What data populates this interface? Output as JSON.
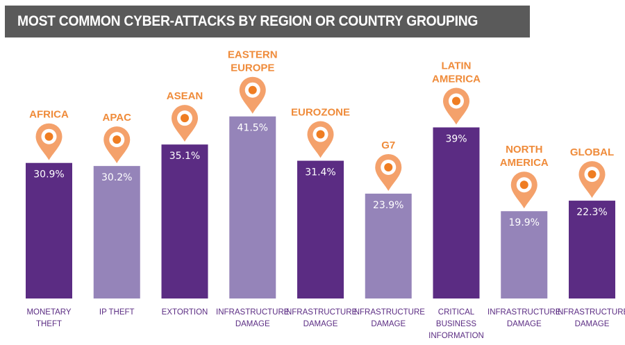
{
  "title": "MOST COMMON CYBER-ATTACKS BY REGION OR COUNTRY GROUPING",
  "colors": {
    "bar_dark": "#5b2c83",
    "bar_light": "#9584b9",
    "pin_orange": "#f4a16b",
    "pin_ring": "#ffffff",
    "pin_dot": "#ef7d22",
    "region_text": "#ef8b3a",
    "category_text": "#5b2c83",
    "value_text": "#ffffff"
  },
  "chart_data": {
    "type": "bar",
    "title": "MOST COMMON CYBER-ATTACKS BY REGION OR COUNTRY GROUPING",
    "ylim": [
      0,
      50
    ],
    "unit": "%",
    "grid": false,
    "bars": [
      {
        "region": [
          "AFRICA"
        ],
        "value": 30.9,
        "label": "30.9%",
        "category": [
          "MONETARY",
          "THEFT"
        ],
        "shade": "dark"
      },
      {
        "region": [
          "APAC"
        ],
        "value": 30.2,
        "label": "30.2%",
        "category": [
          "IP THEFT"
        ],
        "shade": "light"
      },
      {
        "region": [
          "ASEAN"
        ],
        "value": 35.1,
        "label": "35.1%",
        "category": [
          "EXTORTION"
        ],
        "shade": "dark"
      },
      {
        "region": [
          "EASTERN",
          "EUROPE"
        ],
        "value": 41.5,
        "label": "41.5%",
        "category": [
          "INFRASTRUCTURE",
          "DAMAGE"
        ],
        "shade": "light"
      },
      {
        "region": [
          "EUROZONE"
        ],
        "value": 31.4,
        "label": "31.4%",
        "category": [
          "INFRASTRUCTURE",
          "DAMAGE"
        ],
        "shade": "dark"
      },
      {
        "region": [
          "G7"
        ],
        "value": 23.9,
        "label": "23.9%",
        "category": [
          "INFRASTRUCTURE",
          "DAMAGE"
        ],
        "shade": "light"
      },
      {
        "region": [
          "LATIN",
          "AMERICA"
        ],
        "value": 39,
        "label": "39%",
        "category": [
          "CRITICAL",
          "BUSINESS",
          "INFORMATION"
        ],
        "shade": "dark"
      },
      {
        "region": [
          "NORTH",
          "AMERICA"
        ],
        "value": 19.9,
        "label": "19.9%",
        "category": [
          "INFRASTRUCTURE",
          "DAMAGE"
        ],
        "shade": "light"
      },
      {
        "region": [
          "GLOBAL"
        ],
        "value": 22.3,
        "label": "22.3%",
        "category": [
          "INFRASTRUCTURE",
          "DAMAGE"
        ],
        "shade": "dark"
      }
    ]
  }
}
